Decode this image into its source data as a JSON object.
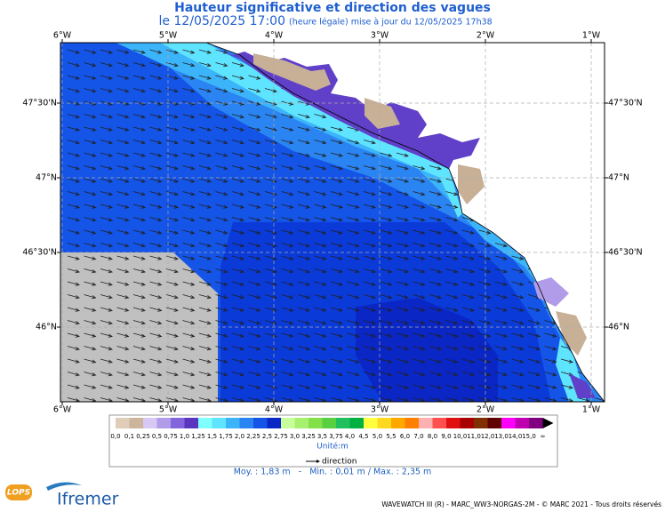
{
  "header": {
    "title": "Hauteur significative et direction des vagues",
    "date": "le 12/05/2025 17:00",
    "note": "(heure légale) mise à jour du 12/05/2025 17h38"
  },
  "map": {
    "lon_labels": [
      "6°W",
      "5°W",
      "4°W",
      "3°W",
      "2°W",
      "1°W"
    ],
    "lat_labels": [
      "47°30'N",
      "47°N",
      "46°30'N",
      "46°N"
    ]
  },
  "legend": {
    "labels": [
      "0,0",
      "0,1",
      "0,25",
      "0,5",
      "0,75",
      "1,0",
      "1,25",
      "1,5",
      "1,75",
      "2,0",
      "2,25",
      "2,5",
      "2,75",
      "3,0",
      "3,25",
      "3,5",
      "3,75",
      "4,0",
      "4,5",
      "5,0",
      "5,5",
      "6,0",
      "7,0",
      "8,0",
      "9,0",
      "10,0",
      "11,0",
      "12,0",
      "13,0",
      "14,0",
      "15,0",
      "∞"
    ],
    "colors": [
      "#e0cdb8",
      "#cdb49c",
      "#d8c8f4",
      "#b09ce8",
      "#8466dc",
      "#5a36c0",
      "#80ffff",
      "#5fe4ff",
      "#3cb4fa",
      "#2a84f2",
      "#1454e6",
      "#0a26c4",
      "#c8ff9a",
      "#a8f070",
      "#84e048",
      "#58d040",
      "#20c060",
      "#00b040",
      "#ffff40",
      "#ffd820",
      "#ffa800",
      "#ff8000",
      "#ffb0b0",
      "#ff5050",
      "#e01010",
      "#a80000",
      "#803000",
      "#600000",
      "#ff00ff",
      "#c000b0",
      "#800080"
    ],
    "unit": "Unité:m",
    "direction": "direction"
  },
  "stats": "Moy. : 1,83 m   -   Min. : 0,01 m / Max. : 2,35 m",
  "logos": {
    "lops": "LOPS",
    "ifremer": "Ifremer"
  },
  "footer": "WAVEWATCH III (R) - MARC_WW3-NORGAS-2M - © MARC 2021 - Tous droits réservés"
}
